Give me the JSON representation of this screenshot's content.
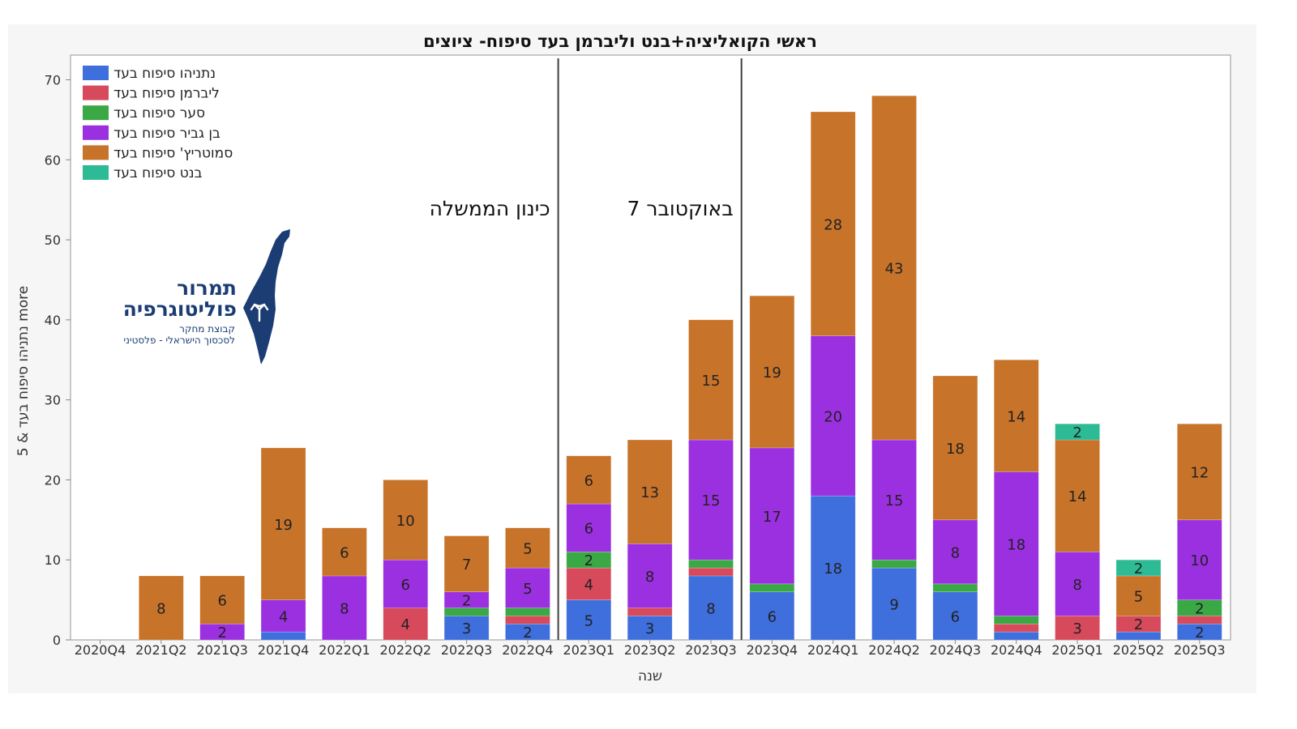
{
  "chart_data": {
    "type": "bar",
    "stacked": true,
    "title": "ראשי הקואליציה+בנט וליברמן בעד סיפוח- ציוצים",
    "xlabel": "שנה",
    "ylabel": "5 & נתניהו סיפוח בעד more",
    "ylim": [
      0,
      70
    ],
    "yticks": [
      0,
      10,
      20,
      30,
      40,
      50,
      60,
      70
    ],
    "legend_position": "top-left",
    "categories": [
      "2020Q4",
      "2021Q2",
      "2021Q3",
      "2021Q4",
      "2022Q1",
      "2022Q2",
      "2022Q3",
      "2022Q4",
      "2023Q1",
      "2023Q2",
      "2023Q3",
      "2023Q4",
      "2024Q1",
      "2024Q2",
      "2024Q3",
      "2024Q4",
      "2025Q1",
      "2025Q2",
      "2025Q3"
    ],
    "series": [
      {
        "name": "נתניהו סיפוח בעד",
        "color": "#3f6fdc",
        "values": [
          0,
          0,
          0,
          1,
          0,
          0,
          3,
          2,
          5,
          3,
          8,
          6,
          18,
          9,
          6,
          1,
          0,
          1,
          2
        ]
      },
      {
        "name": "ליברמן  סיפוח בעד",
        "color": "#d64a5c",
        "values": [
          0,
          0,
          0,
          0,
          0,
          4,
          0,
          1,
          4,
          1,
          1,
          0,
          0,
          0,
          0,
          1,
          3,
          2,
          1
        ]
      },
      {
        "name": "סער   סיפוח בעד",
        "color": "#3aa845",
        "values": [
          0,
          0,
          0,
          0,
          0,
          0,
          1,
          1,
          2,
          0,
          1,
          1,
          0,
          1,
          1,
          1,
          0,
          0,
          2
        ]
      },
      {
        "name": "בן גביר  סיפוח בעד",
        "color": "#9b30e0",
        "values": [
          0,
          0,
          2,
          4,
          8,
          6,
          2,
          5,
          6,
          8,
          15,
          17,
          20,
          15,
          8,
          18,
          8,
          0,
          10
        ]
      },
      {
        "name": "סמוטריץ' סיפוח בעד",
        "color": "#c8732a",
        "values": [
          0,
          8,
          6,
          19,
          6,
          10,
          7,
          5,
          6,
          13,
          15,
          19,
          28,
          43,
          18,
          14,
          14,
          5,
          12
        ]
      },
      {
        "name": "בנט סיפוח בעד",
        "color": "#2cbb95",
        "values": [
          0,
          0,
          0,
          0,
          0,
          0,
          0,
          0,
          0,
          0,
          0,
          0,
          0,
          0,
          0,
          0,
          2,
          2,
          0
        ]
      }
    ],
    "data_labels": [
      [
        null,
        null,
        null,
        null,
        null,
        null,
        3,
        2,
        5,
        3,
        8,
        6,
        18,
        9,
        6,
        null,
        null,
        null,
        2
      ],
      [
        null,
        null,
        null,
        null,
        null,
        4,
        null,
        null,
        4,
        null,
        null,
        null,
        null,
        null,
        null,
        null,
        3,
        2,
        null
      ],
      [
        null,
        null,
        null,
        null,
        null,
        null,
        null,
        null,
        2,
        null,
        null,
        null,
        null,
        null,
        null,
        null,
        null,
        null,
        2
      ],
      [
        null,
        null,
        2,
        4,
        8,
        6,
        2,
        5,
        6,
        8,
        15,
        17,
        20,
        15,
        8,
        18,
        8,
        null,
        10
      ],
      [
        null,
        8,
        6,
        19,
        6,
        10,
        7,
        5,
        6,
        13,
        15,
        19,
        28,
        43,
        18,
        14,
        14,
        5,
        12
      ],
      [
        null,
        null,
        null,
        null,
        null,
        null,
        null,
        null,
        null,
        null,
        null,
        null,
        null,
        null,
        null,
        null,
        2,
        2,
        null
      ]
    ],
    "annotations": [
      {
        "text": "כינון הממשלה",
        "after_category": "2022Q4"
      },
      {
        "text": "7 באוקטובר",
        "after_category": "2023Q3"
      }
    ]
  },
  "logo": {
    "title_line1": "תמרור",
    "title_line2": "פוליטוגרפיה",
    "sub_line1": "קבוצת מחקר",
    "sub_line2": "לסכסוך הישראלי - פלסטיני",
    "color": "#1b3d73"
  }
}
